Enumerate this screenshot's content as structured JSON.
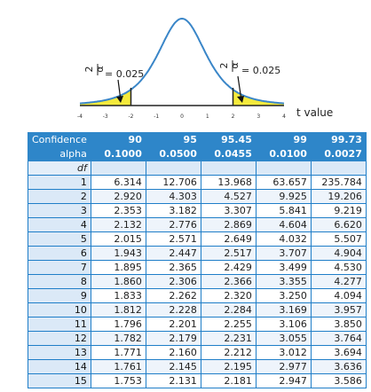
{
  "chart_data": [
    {
      "type": "area",
      "xlabel": "t value",
      "x_ticks": [
        "-4",
        "-3",
        "-2",
        "-1",
        "0",
        "1",
        "2",
        "3",
        "4"
      ],
      "xlim": [
        -4,
        4
      ],
      "critical_values": [
        -2,
        2
      ],
      "tail_labels": [
        {
          "side": "left",
          "fraction": [
            "α",
            "2"
          ],
          "text": "= 0.025"
        },
        {
          "side": "right",
          "fraction": [
            "α",
            "2"
          ],
          "text": "= 0.025"
        }
      ],
      "colors": {
        "curve": "#3a86c8",
        "tail_fill": "#f4ea3c"
      }
    },
    {
      "type": "table",
      "row_labels": {
        "confidence": "Confidence",
        "alpha": "alpha",
        "df": "df"
      },
      "confidence": [
        "90",
        "95",
        "95.45",
        "99",
        "99.73"
      ],
      "alpha": [
        "0.1000",
        "0.0500",
        "0.0455",
        "0.0100",
        "0.0027"
      ],
      "rows": [
        [
          "1",
          "6.314",
          "12.706",
          "13.968",
          "63.657",
          "235.784"
        ],
        [
          "2",
          "2.920",
          "4.303",
          "4.527",
          "9.925",
          "19.206"
        ],
        [
          "3",
          "2.353",
          "3.182",
          "3.307",
          "5.841",
          "9.219"
        ],
        [
          "4",
          "2.132",
          "2.776",
          "2.869",
          "4.604",
          "6.620"
        ],
        [
          "5",
          "2.015",
          "2.571",
          "2.649",
          "4.032",
          "5.507"
        ],
        [
          "6",
          "1.943",
          "2.447",
          "2.517",
          "3.707",
          "4.904"
        ],
        [
          "7",
          "1.895",
          "2.365",
          "2.429",
          "3.499",
          "4.530"
        ],
        [
          "8",
          "1.860",
          "2.306",
          "2.366",
          "3.355",
          "4.277"
        ],
        [
          "9",
          "1.833",
          "2.262",
          "2.320",
          "3.250",
          "4.094"
        ],
        [
          "10",
          "1.812",
          "2.228",
          "2.284",
          "3.169",
          "3.957"
        ],
        [
          "11",
          "1.796",
          "2.201",
          "2.255",
          "3.106",
          "3.850"
        ],
        [
          "12",
          "1.782",
          "2.179",
          "2.231",
          "3.055",
          "3.764"
        ],
        [
          "13",
          "1.771",
          "2.160",
          "2.212",
          "3.012",
          "3.694"
        ],
        [
          "14",
          "1.761",
          "2.145",
          "2.195",
          "2.977",
          "3.636"
        ],
        [
          "15",
          "1.753",
          "2.131",
          "2.181",
          "2.947",
          "3.586"
        ]
      ]
    }
  ]
}
